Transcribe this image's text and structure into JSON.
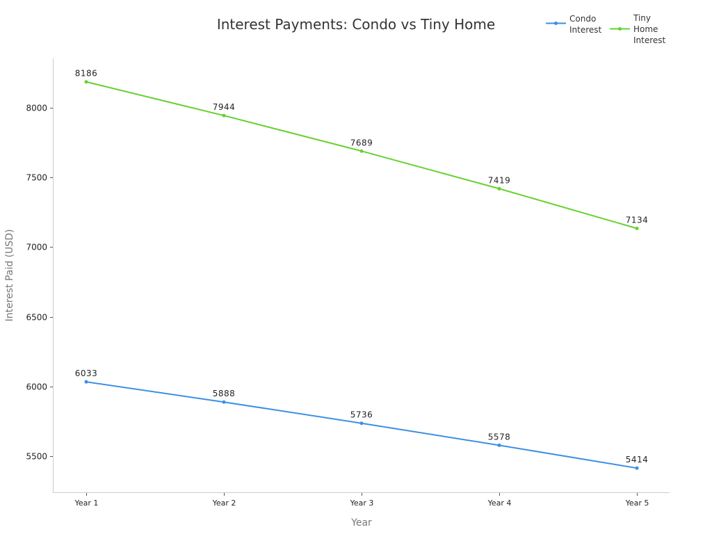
{
  "chart_data": {
    "type": "line",
    "title": "Interest Payments: Condo vs Tiny Home",
    "xlabel": "Year",
    "ylabel": "Interest Paid (USD)",
    "categories": [
      "Year 1",
      "Year 2",
      "Year 3",
      "Year 4",
      "Year 5"
    ],
    "series": [
      {
        "name": "Condo Interest",
        "legend_lines": [
          "Condo",
          "Interest"
        ],
        "color": "#3b8fe3",
        "values": [
          6033,
          5888,
          5736,
          5578,
          5414
        ]
      },
      {
        "name": "Tiny Home Interest",
        "legend_lines": [
          "Tiny",
          "Home",
          "Interest"
        ],
        "color": "#66d12e",
        "values": [
          8186,
          7944,
          7689,
          7419,
          7134
        ]
      }
    ],
    "yticks": [
      5500,
      6000,
      6500,
      7000,
      7500,
      8000
    ],
    "ylim": [
      5240,
      8354
    ],
    "grid": false,
    "legend_position": "top-right",
    "data_labels": true
  }
}
